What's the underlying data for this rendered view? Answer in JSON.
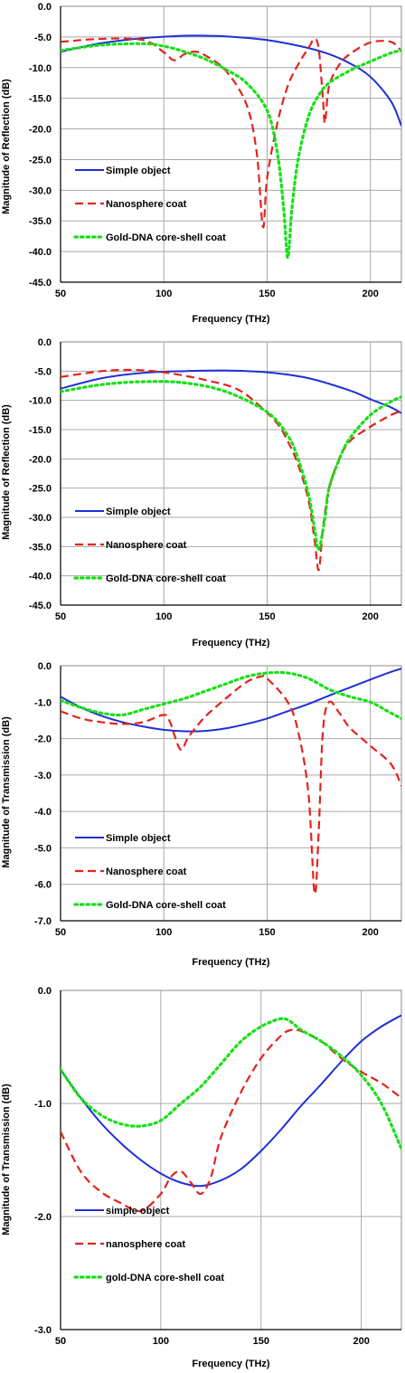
{
  "colors": {
    "simple": "#1f2fd6",
    "nano": "#e3231b",
    "gold": "#16e016"
  },
  "chart_data": [
    {
      "type": "line",
      "xlabel": "Frequency (THz)",
      "ylabel": "Magnitude of Reflection (dB)",
      "xlim": [
        50,
        215
      ],
      "ylim": [
        -45,
        0
      ],
      "xticks": [
        50,
        100,
        150,
        200
      ],
      "yticks": [
        0,
        -5,
        -10,
        -15,
        -20,
        -25,
        -30,
        -35,
        -40,
        -45
      ],
      "grid": true,
      "legend": "bottom-left",
      "series": [
        {
          "name": "Simple object",
          "style": "solid",
          "color": "#1f2fd6",
          "x": [
            50,
            70,
            90,
            110,
            120,
            130,
            150,
            170,
            180,
            190,
            200,
            210,
            215
          ],
          "y": [
            -7.4,
            -6.0,
            -5.2,
            -4.8,
            -4.8,
            -4.9,
            -5.5,
            -6.8,
            -7.8,
            -9.3,
            -11.5,
            -15.5,
            -19.5
          ]
        },
        {
          "name": "Nanosphere coat",
          "style": "dashed",
          "color": "#e3231b",
          "x": [
            50,
            70,
            90,
            100,
            105,
            110,
            115,
            120,
            130,
            140,
            145,
            148,
            150,
            155,
            160,
            165,
            170,
            173,
            175,
            177,
            178,
            180,
            185,
            190,
            200,
            210,
            215
          ],
          "y": [
            -5.8,
            -5.3,
            -5.5,
            -7.5,
            -8.8,
            -7.8,
            -7.4,
            -8.0,
            -10.5,
            -16.0,
            -24.0,
            -36.0,
            -28.0,
            -19.0,
            -13.0,
            -9.5,
            -6.8,
            -5.3,
            -7.0,
            -15.0,
            -19.0,
            -13.0,
            -9.5,
            -7.8,
            -5.9,
            -5.8,
            -7.3
          ]
        },
        {
          "name": "Gold-DNA core-shell coat",
          "style": "dotted",
          "color": "#16e016",
          "x": [
            50,
            70,
            90,
            100,
            110,
            120,
            130,
            140,
            150,
            155,
            158,
            160,
            162,
            165,
            170,
            175,
            180,
            190,
            200,
            210,
            215
          ],
          "y": [
            -7.2,
            -6.3,
            -6.1,
            -6.5,
            -7.4,
            -8.6,
            -10.3,
            -12.5,
            -17.0,
            -24.0,
            -33.0,
            -41.0,
            -33.0,
            -25.0,
            -18.0,
            -14.5,
            -12.5,
            -10.5,
            -9.0,
            -7.6,
            -7.2
          ]
        }
      ]
    },
    {
      "type": "line",
      "xlabel": "Frequency (THz)",
      "ylabel": "Magnitude of Reflection (dB)",
      "xlim": [
        50,
        215
      ],
      "ylim": [
        -45,
        0
      ],
      "xticks": [
        50,
        100,
        150,
        200
      ],
      "yticks": [
        0,
        -5,
        -10,
        -15,
        -20,
        -25,
        -30,
        -35,
        -40,
        -45
      ],
      "grid": true,
      "legend": "bottom-left",
      "series": [
        {
          "name": "Simple object",
          "style": "solid",
          "color": "#1f2fd6",
          "x": [
            50,
            70,
            90,
            110,
            130,
            150,
            170,
            190,
            200,
            210,
            215
          ],
          "y": [
            -8.0,
            -6.2,
            -5.3,
            -5.0,
            -4.9,
            -5.2,
            -6.2,
            -8.3,
            -9.8,
            -11.2,
            -12.2
          ]
        },
        {
          "name": "Nanosphere coat",
          "style": "dashed",
          "color": "#e3231b",
          "x": [
            50,
            70,
            85,
            100,
            120,
            135,
            145,
            155,
            160,
            165,
            170,
            173,
            175,
            177,
            180,
            185,
            190,
            200,
            210,
            215
          ],
          "y": [
            -6.0,
            -5.0,
            -4.8,
            -5.2,
            -6.5,
            -8.0,
            -10.5,
            -14.0,
            -17.0,
            -21.0,
            -27.0,
            -34.0,
            -39.0,
            -32.0,
            -25.0,
            -20.0,
            -17.0,
            -14.5,
            -12.5,
            -11.8
          ]
        },
        {
          "name": "Gold-DNA core-shell coat",
          "style": "dotted",
          "color": "#16e016",
          "x": [
            50,
            70,
            90,
            110,
            130,
            150,
            160,
            165,
            170,
            173,
            175,
            178,
            180,
            185,
            190,
            200,
            210,
            215
          ],
          "y": [
            -8.5,
            -7.3,
            -6.8,
            -7.0,
            -8.5,
            -12.0,
            -16.0,
            -20.0,
            -26.0,
            -32.0,
            -35.5,
            -30.0,
            -25.0,
            -20.0,
            -16.5,
            -12.5,
            -10.2,
            -9.4
          ]
        }
      ]
    },
    {
      "type": "line",
      "xlabel": "Frequency (THz)",
      "ylabel": "Magnitude of Transmission (dB)",
      "xlim": [
        50,
        215
      ],
      "ylim": [
        -7,
        0
      ],
      "xticks": [
        50,
        100,
        150,
        200
      ],
      "yticks": [
        0,
        -1,
        -2,
        -3,
        -4,
        -5,
        -6,
        -7
      ],
      "grid": true,
      "legend": "bottom-left",
      "series": [
        {
          "name": "Simple object",
          "style": "solid",
          "color": "#1f2fd6",
          "x": [
            50,
            60,
            70,
            80,
            90,
            100,
            110,
            120,
            130,
            140,
            150,
            160,
            170,
            180,
            190,
            200,
            210,
            215
          ],
          "y": [
            -0.85,
            -1.15,
            -1.38,
            -1.55,
            -1.67,
            -1.76,
            -1.8,
            -1.79,
            -1.72,
            -1.6,
            -1.45,
            -1.25,
            -1.05,
            -0.82,
            -0.6,
            -0.38,
            -0.17,
            -0.08
          ]
        },
        {
          "name": "Nanosphere coat",
          "style": "dashed",
          "color": "#e3231b",
          "x": [
            50,
            60,
            70,
            80,
            90,
            100,
            103,
            108,
            112,
            120,
            130,
            140,
            147,
            150,
            160,
            165,
            170,
            173,
            175,
            177,
            180,
            185,
            190,
            200,
            210,
            215
          ],
          "y": [
            -1.25,
            -1.45,
            -1.55,
            -1.6,
            -1.55,
            -1.35,
            -1.55,
            -2.3,
            -1.95,
            -1.4,
            -0.9,
            -0.45,
            -0.3,
            -0.35,
            -1.0,
            -1.8,
            -3.5,
            -6.25,
            -4.5,
            -1.8,
            -1.0,
            -1.3,
            -1.7,
            -2.2,
            -2.7,
            -3.3
          ]
        },
        {
          "name": "Gold-DNA core-shell coat",
          "style": "dotted",
          "color": "#16e016",
          "x": [
            50,
            60,
            70,
            80,
            90,
            100,
            110,
            120,
            130,
            140,
            150,
            160,
            170,
            180,
            190,
            200,
            210,
            215
          ],
          "y": [
            -0.95,
            -1.15,
            -1.3,
            -1.35,
            -1.2,
            -1.05,
            -0.9,
            -0.7,
            -0.5,
            -0.3,
            -0.2,
            -0.2,
            -0.35,
            -0.65,
            -0.85,
            -1.0,
            -1.3,
            -1.45
          ]
        }
      ]
    },
    {
      "type": "line",
      "xlabel": "Frequency (THz)",
      "ylabel": "Magnitude of Transmission (dB)",
      "xlim": [
        50,
        220
      ],
      "ylim": [
        -3,
        0
      ],
      "xticks": [
        50,
        100,
        150,
        200
      ],
      "yticks": [
        0,
        -1,
        -2,
        -3
      ],
      "grid": true,
      "legend": "bottom-left",
      "series": [
        {
          "name": "simple object",
          "style": "solid",
          "color": "#1f2fd6",
          "x": [
            50,
            60,
            70,
            80,
            90,
            100,
            110,
            120,
            130,
            140,
            150,
            160,
            170,
            180,
            190,
            200,
            210,
            220
          ],
          "y": [
            -0.7,
            -0.95,
            -1.17,
            -1.35,
            -1.5,
            -1.62,
            -1.7,
            -1.73,
            -1.68,
            -1.58,
            -1.42,
            -1.23,
            -1.02,
            -0.83,
            -0.63,
            -0.45,
            -0.32,
            -0.22
          ]
        },
        {
          "name": "nanosphere coat",
          "style": "dashed",
          "color": "#e3231b",
          "x": [
            50,
            60,
            70,
            80,
            90,
            100,
            105,
            110,
            115,
            120,
            125,
            130,
            140,
            150,
            160,
            165,
            170,
            180,
            190,
            200,
            210,
            220
          ],
          "y": [
            -1.25,
            -1.6,
            -1.78,
            -1.88,
            -1.95,
            -1.8,
            -1.65,
            -1.6,
            -1.7,
            -1.8,
            -1.65,
            -1.3,
            -0.9,
            -0.6,
            -0.4,
            -0.35,
            -0.36,
            -0.45,
            -0.6,
            -0.72,
            -0.82,
            -0.95
          ]
        },
        {
          "name": "gold-DNA core-shell coat",
          "style": "dotted",
          "color": "#16e016",
          "x": [
            50,
            60,
            70,
            80,
            90,
            100,
            110,
            120,
            130,
            140,
            150,
            160,
            165,
            170,
            180,
            190,
            200,
            210,
            220
          ],
          "y": [
            -0.7,
            -0.95,
            -1.1,
            -1.18,
            -1.2,
            -1.15,
            -1.0,
            -0.85,
            -0.65,
            -0.45,
            -0.32,
            -0.25,
            -0.28,
            -0.35,
            -0.45,
            -0.58,
            -0.75,
            -1.0,
            -1.4
          ]
        }
      ]
    }
  ]
}
